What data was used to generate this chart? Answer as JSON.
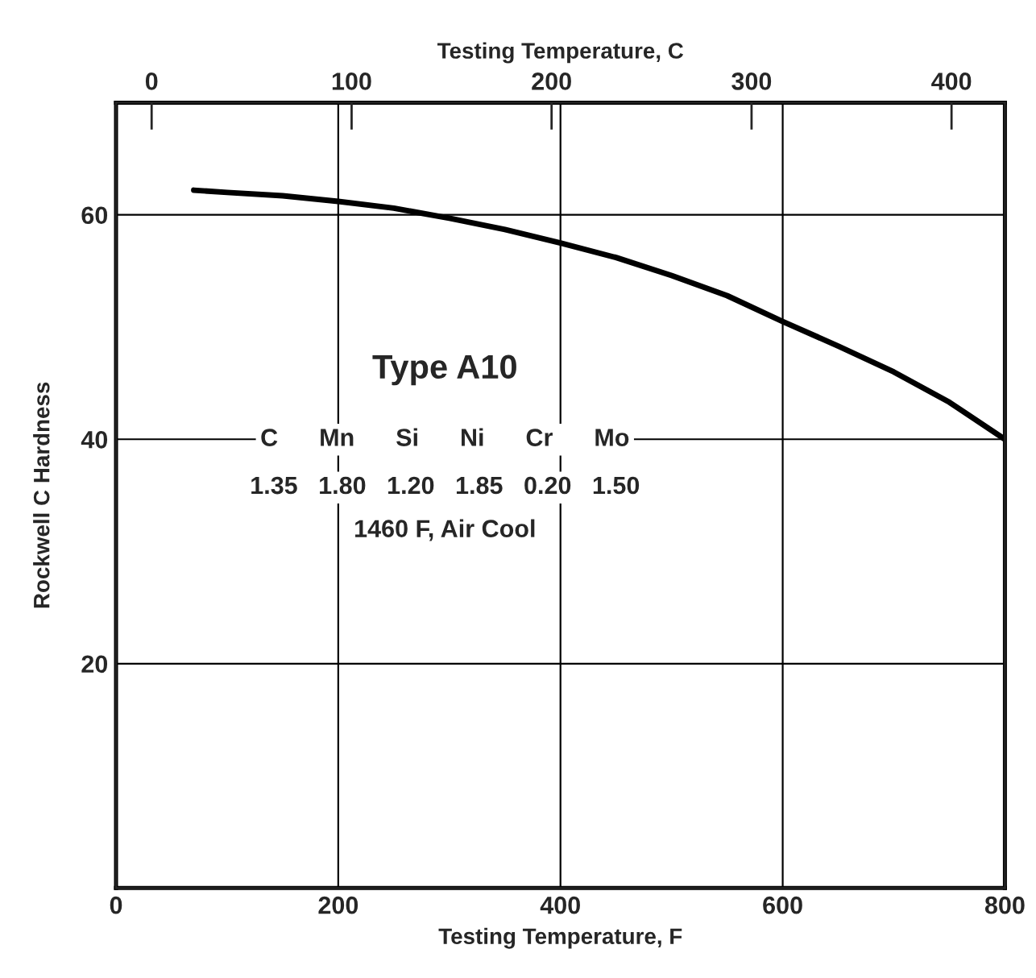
{
  "chart_data": {
    "type": "line",
    "xlabel": "Testing Temperature, F",
    "ylabel": "Rockwell C Hardness",
    "x2label": "Testing Temperature, C",
    "x": [
      70,
      100,
      150,
      200,
      250,
      300,
      350,
      400,
      450,
      500,
      550,
      600,
      650,
      700,
      750,
      800
    ],
    "series": [
      {
        "color": "#000000",
        "values": [
          62.2,
          62.0,
          61.7,
          61.2,
          60.6,
          59.7,
          58.7,
          57.5,
          56.2,
          54.6,
          52.8,
          50.5,
          48.3,
          46.0,
          43.3,
          40.0
        ]
      }
    ],
    "xlim": [
      0,
      800
    ],
    "xticks": [
      0,
      200,
      400,
      600,
      800
    ],
    "ylim": [
      0,
      70
    ],
    "yticks": [
      20,
      40,
      60
    ],
    "x2lim": [
      -17.8,
      426.7
    ],
    "x2ticks": [
      0,
      100,
      200,
      300,
      400
    ],
    "grid": true,
    "line_style": "solid",
    "marker": "none",
    "annotations": [
      "Type A10",
      "C      Mn      Si      Ni      Cr      Mo",
      "1.35   1.80   1.20   1.85   0.20   1.50",
      "1460 F, Air Cool"
    ]
  }
}
